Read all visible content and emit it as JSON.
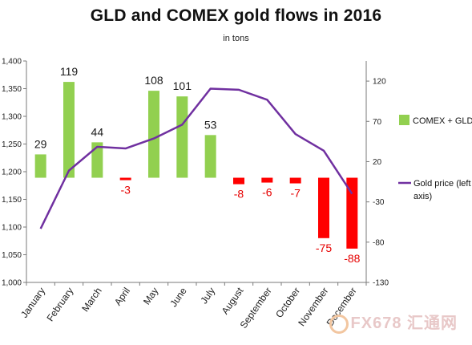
{
  "chart_data": {
    "type": "bar+line",
    "title": "GLD and COMEX gold flows in 2016",
    "subtitle": "in tons",
    "categories": [
      "January",
      "February",
      "March",
      "April",
      "May",
      "June",
      "July",
      "August",
      "September",
      "October",
      "November",
      "December"
    ],
    "series": [
      {
        "name": "COMEX + GLD",
        "type": "bar",
        "axis": "right",
        "values": [
          29,
          119,
          44,
          -3,
          108,
          101,
          53,
          -8,
          -6,
          -7,
          -75,
          -88
        ],
        "labels": [
          "29",
          "119",
          "44",
          "-3",
          "108",
          "101",
          "53",
          "-8",
          "-6",
          "-7",
          "-75",
          "-88"
        ]
      },
      {
        "name": "Gold price (left axis)",
        "type": "line",
        "axis": "left",
        "values": [
          1097,
          1202,
          1245,
          1242,
          1260,
          1285,
          1350,
          1348,
          1330,
          1268,
          1238,
          1160
        ]
      }
    ],
    "left_axis": {
      "ylim": [
        1000,
        1400
      ],
      "ticks": [
        1000,
        1050,
        1100,
        1150,
        1200,
        1250,
        1300,
        1350,
        1400
      ],
      "tick_labels": [
        "1,000",
        "1,050",
        "1,100",
        "1,150",
        "1,200",
        "1,250",
        "1,300",
        "1,350",
        "1,400"
      ]
    },
    "right_axis": {
      "ylim": [
        -130,
        145
      ],
      "ticks": [
        -130,
        -80,
        -30,
        20,
        70,
        120
      ],
      "tick_labels": [
        "-130",
        "-80",
        "-30",
        "20",
        "70",
        "120"
      ]
    },
    "colors": {
      "bar_positive": "#92d050",
      "bar_negative": "#ff0000",
      "label_positive": "#1a1a1a",
      "label_negative": "#e60000",
      "line": "#7030a0"
    },
    "legend": {
      "placement": "right"
    },
    "grid": false
  },
  "watermark": {
    "text": "FX678 汇通网"
  }
}
